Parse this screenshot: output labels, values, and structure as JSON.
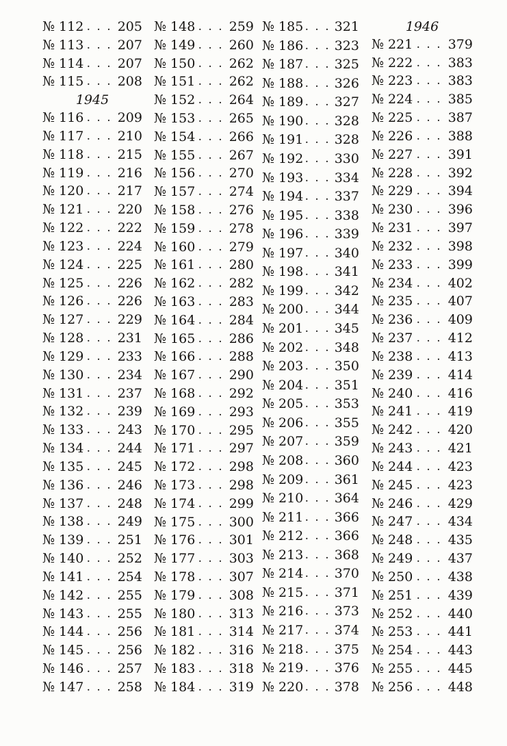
{
  "numero_sign": "№",
  "dot_leader": ". . .",
  "colors": {
    "background": "#fcfcfa",
    "text": "#161412"
  },
  "columns": [
    {
      "lines": [
        {
          "no": "112",
          "page": "205"
        },
        {
          "no": "113",
          "page": "207"
        },
        {
          "no": "114",
          "page": "207"
        },
        {
          "no": "115",
          "page": "208"
        },
        {
          "year": "1945"
        },
        {
          "no": "116",
          "page": "209"
        },
        {
          "no": "117",
          "page": "210"
        },
        {
          "no": "118",
          "page": "215"
        },
        {
          "no": "119",
          "page": "216"
        },
        {
          "no": "120",
          "page": "217"
        },
        {
          "no": "121",
          "page": "220"
        },
        {
          "no": "122",
          "page": "222"
        },
        {
          "no": "123",
          "page": "224"
        },
        {
          "no": "124",
          "page": "225"
        },
        {
          "no": "125",
          "page": "226"
        },
        {
          "no": "126",
          "page": "226"
        },
        {
          "no": "127",
          "page": "229"
        },
        {
          "no": "128",
          "page": "231"
        },
        {
          "no": "129",
          "page": "233"
        },
        {
          "no": "130",
          "page": "234"
        },
        {
          "no": "131",
          "page": "237"
        },
        {
          "no": "132",
          "page": "239"
        },
        {
          "no": "133",
          "page": "243"
        },
        {
          "no": "134",
          "page": "244"
        },
        {
          "no": "135",
          "page": "245"
        },
        {
          "no": "136",
          "page": "246"
        },
        {
          "no": "137",
          "page": "248"
        },
        {
          "no": "138",
          "page": "249"
        },
        {
          "no": "139",
          "page": "251"
        },
        {
          "no": "140",
          "page": "252"
        },
        {
          "no": "141",
          "page": "254"
        },
        {
          "no": "142",
          "page": "255"
        },
        {
          "no": "143",
          "page": "255"
        },
        {
          "no": "144",
          "page": "256"
        },
        {
          "no": "145",
          "page": "256"
        },
        {
          "no": "146",
          "page": "257"
        },
        {
          "no": "147",
          "page": "258"
        }
      ]
    },
    {
      "lines": [
        {
          "no": "148",
          "page": "259"
        },
        {
          "no": "149",
          "page": "260"
        },
        {
          "no": "150",
          "page": "262"
        },
        {
          "no": "151",
          "page": "262"
        },
        {
          "no": "152",
          "page": "264"
        },
        {
          "no": "153",
          "page": "265"
        },
        {
          "no": "154",
          "page": "266"
        },
        {
          "no": "155",
          "page": "267"
        },
        {
          "no": "156",
          "page": "270"
        },
        {
          "no": "157",
          "page": "274"
        },
        {
          "no": "158",
          "page": "276"
        },
        {
          "no": "159",
          "page": "278"
        },
        {
          "no": "160",
          "page": "279"
        },
        {
          "no": "161",
          "page": "280"
        },
        {
          "no": "162",
          "page": "282"
        },
        {
          "no": "163",
          "page": "283"
        },
        {
          "no": "164",
          "page": "284"
        },
        {
          "no": "165",
          "page": "286"
        },
        {
          "no": "166",
          "page": "288"
        },
        {
          "no": "167",
          "page": "290"
        },
        {
          "no": "168",
          "page": "292"
        },
        {
          "no": "169",
          "page": "293"
        },
        {
          "no": "170",
          "page": "295"
        },
        {
          "no": "171",
          "page": "297"
        },
        {
          "no": "172",
          "page": "298"
        },
        {
          "no": "173",
          "page": "298"
        },
        {
          "no": "174",
          "page": "299"
        },
        {
          "no": "175",
          "page": "300"
        },
        {
          "no": "176",
          "page": "301"
        },
        {
          "no": "177",
          "page": "303"
        },
        {
          "no": "178",
          "page": "307"
        },
        {
          "no": "179",
          "page": "308"
        },
        {
          "no": "180",
          "page": "313"
        },
        {
          "no": "181",
          "page": "314"
        },
        {
          "no": "182",
          "page": "316"
        },
        {
          "no": "183",
          "page": "318"
        },
        {
          "no": "184",
          "page": "319"
        }
      ]
    },
    {
      "lines": [
        {
          "no": "185",
          "page": "321"
        },
        {
          "no": "186",
          "page": "323"
        },
        {
          "no": "187",
          "page": "325"
        },
        {
          "no": "188",
          "page": "326"
        },
        {
          "no": "189",
          "page": "327"
        },
        {
          "no": "190",
          "page": "328"
        },
        {
          "no": "191",
          "page": "328"
        },
        {
          "no": "192",
          "page": "330"
        },
        {
          "no": "193",
          "page": "334"
        },
        {
          "no": "194",
          "page": "337"
        },
        {
          "no": "195",
          "page": "338"
        },
        {
          "no": "196",
          "page": "339"
        },
        {
          "no": "197",
          "page": "340"
        },
        {
          "no": "198",
          "page": "341"
        },
        {
          "no": "199",
          "page": "342"
        },
        {
          "no": "200",
          "page": "344"
        },
        {
          "no": "201",
          "page": "345"
        },
        {
          "no": "202",
          "page": "348"
        },
        {
          "no": "203",
          "page": "350"
        },
        {
          "no": "204",
          "page": "351"
        },
        {
          "no": "205",
          "page": "353"
        },
        {
          "no": "206",
          "page": "355"
        },
        {
          "no": "207",
          "page": "359"
        },
        {
          "no": "208",
          "page": "360"
        },
        {
          "no": "209",
          "page": "361"
        },
        {
          "no": "210",
          "page": "364"
        },
        {
          "no": "211",
          "page": "366"
        },
        {
          "no": "212",
          "page": "366"
        },
        {
          "no": "213",
          "page": "368"
        },
        {
          "no": "214",
          "page": "370"
        },
        {
          "no": "215",
          "page": "371"
        },
        {
          "no": "216",
          "page": "373"
        },
        {
          "no": "217",
          "page": "374"
        },
        {
          "no": "218",
          "page": "375"
        },
        {
          "no": "219",
          "page": "376"
        },
        {
          "no": "220",
          "page": "378"
        }
      ]
    },
    {
      "lines": [
        {
          "year": "1946"
        },
        {
          "no": "221",
          "page": "379"
        },
        {
          "no": "222",
          "page": "383"
        },
        {
          "no": "223",
          "page": "383"
        },
        {
          "no": "224",
          "page": "385"
        },
        {
          "no": "225",
          "page": "387"
        },
        {
          "no": "226",
          "page": "388"
        },
        {
          "no": "227",
          "page": "391"
        },
        {
          "no": "228",
          "page": "392"
        },
        {
          "no": "229",
          "page": "394"
        },
        {
          "no": "230",
          "page": "396"
        },
        {
          "no": "231",
          "page": "397"
        },
        {
          "no": "232",
          "page": "398"
        },
        {
          "no": "233",
          "page": "399"
        },
        {
          "no": "234",
          "page": "402"
        },
        {
          "no": "235",
          "page": "407"
        },
        {
          "no": "236",
          "page": "409"
        },
        {
          "no": "237",
          "page": "412"
        },
        {
          "no": "238",
          "page": "413"
        },
        {
          "no": "239",
          "page": "414"
        },
        {
          "no": "240",
          "page": "416"
        },
        {
          "no": "241",
          "page": "419"
        },
        {
          "no": "242",
          "page": "420"
        },
        {
          "no": "243",
          "page": "421"
        },
        {
          "no": "244",
          "page": "423"
        },
        {
          "no": "245",
          "page": "423"
        },
        {
          "no": "246",
          "page": "429"
        },
        {
          "no": "247",
          "page": "434"
        },
        {
          "no": "248",
          "page": "435"
        },
        {
          "no": "249",
          "page": "437"
        },
        {
          "no": "250",
          "page": "438"
        },
        {
          "no": "251",
          "page": "439"
        },
        {
          "no": "252",
          "page": "440"
        },
        {
          "no": "253",
          "page": "441"
        },
        {
          "no": "254",
          "page": "443"
        },
        {
          "no": "255",
          "page": "445"
        },
        {
          "no": "256",
          "page": "448"
        }
      ]
    }
  ]
}
